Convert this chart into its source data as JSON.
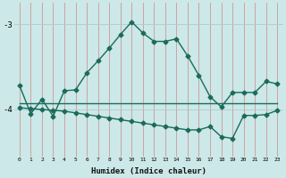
{
  "xlabel": "Humidex (Indice chaleur)",
  "x": [
    0,
    1,
    2,
    3,
    4,
    5,
    6,
    7,
    8,
    9,
    10,
    11,
    12,
    13,
    14,
    15,
    16,
    17,
    18,
    19,
    20,
    21,
    22,
    23
  ],
  "line1_y": [
    -3.72,
    -4.05,
    -3.88,
    -4.08,
    -3.78,
    -3.77,
    -3.57,
    -3.43,
    -3.28,
    -3.12,
    -2.97,
    -3.1,
    -3.2,
    -3.2,
    -3.17,
    -3.37,
    -3.6,
    -3.85,
    -3.97,
    -3.8,
    -3.8,
    -3.8,
    -3.67,
    -3.7
  ],
  "line2_y": [
    -3.93,
    -3.93,
    -3.93,
    -3.93,
    -3.93,
    -3.93,
    -3.93,
    -3.93,
    -3.93,
    -3.93,
    -3.93,
    -3.93,
    -3.93,
    -3.93,
    -3.93,
    -3.93,
    -3.93,
    -3.93,
    -3.93,
    -3.93,
    -3.93,
    -3.93,
    -3.93,
    -3.93
  ],
  "line3_y": [
    -3.98,
    -3.99,
    -4.0,
    -4.01,
    -4.02,
    -4.04,
    -4.06,
    -4.08,
    -4.1,
    -4.12,
    -4.14,
    -4.16,
    -4.18,
    -4.2,
    -4.22,
    -4.24,
    -4.24,
    -4.2,
    -4.32,
    -4.34,
    -4.07,
    -4.07,
    -4.06,
    -4.01
  ],
  "line_color": "#1a6b5a",
  "bg_color": "#cce8e8",
  "grid_color_v": "#cc9999",
  "grid_color_h": "#aacccc",
  "ylim": [
    -4.55,
    -2.75
  ],
  "yticks": [
    -4,
    -3
  ],
  "xticks": [
    0,
    1,
    2,
    3,
    4,
    5,
    6,
    7,
    8,
    9,
    10,
    11,
    12,
    13,
    14,
    15,
    16,
    17,
    18,
    19,
    20,
    21,
    22,
    23
  ],
  "marker": "D",
  "markersize": 2.5,
  "linewidth": 1.0
}
